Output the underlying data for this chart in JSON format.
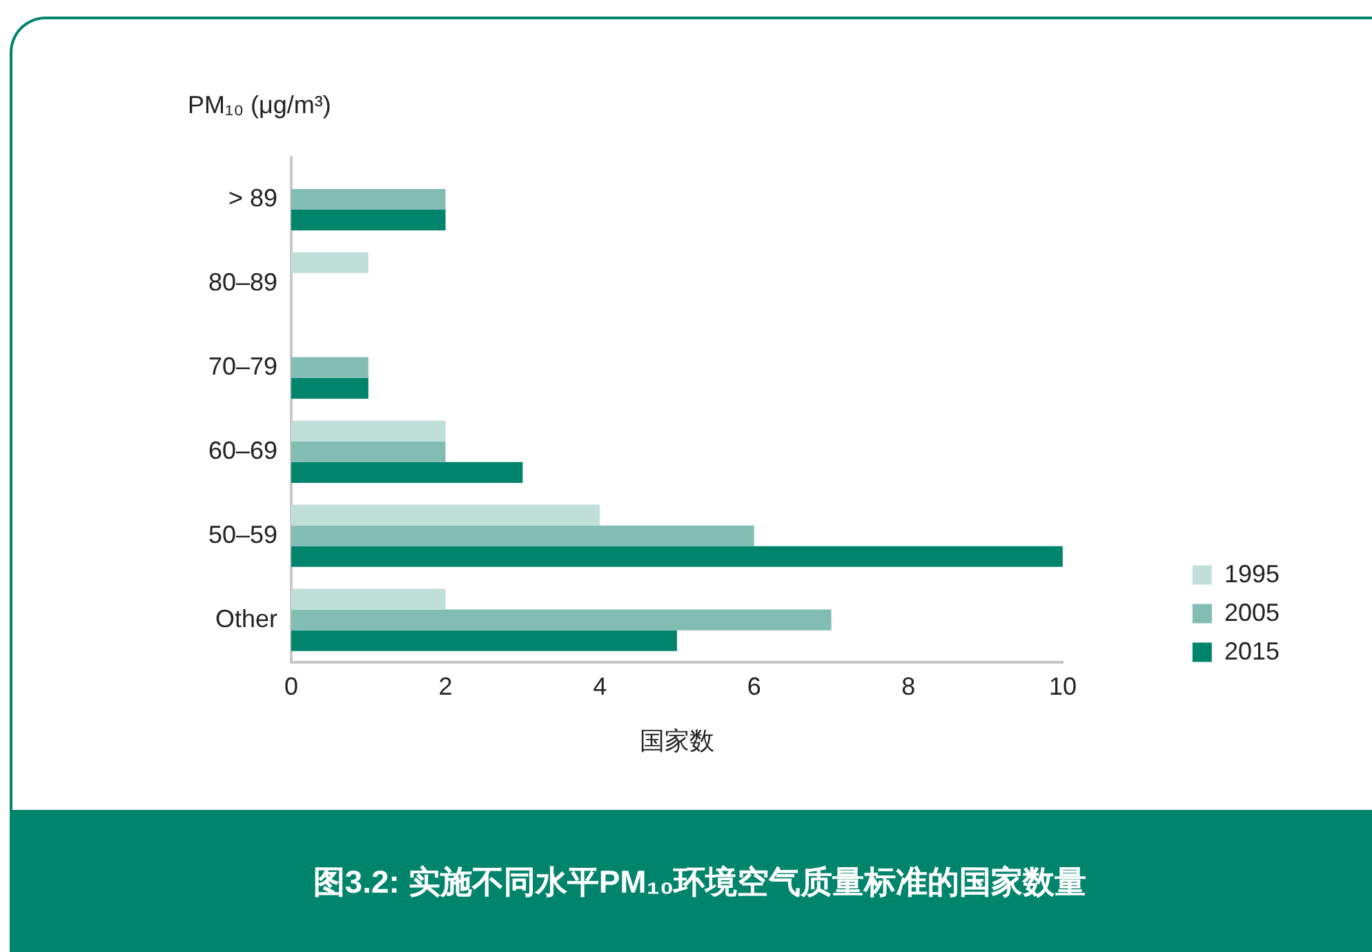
{
  "chart_data": {
    "type": "bar",
    "orientation": "horizontal",
    "title": "图3.2: 实施不同水平PM₁₀环境空气质量标准的国家数量",
    "ylabel": "PM₁₀ (μg/m³)",
    "xlabel": "国家数",
    "categories": [
      "> 89",
      "80–89",
      "70–79",
      "60–69",
      "50–59",
      "Other"
    ],
    "series": [
      {
        "name": "1995",
        "color": "#c0dfd9",
        "values": [
          0,
          1,
          0,
          2,
          4,
          2
        ]
      },
      {
        "name": "2005",
        "color": "#82bdb4",
        "values": [
          2,
          0,
          1,
          2,
          6,
          7
        ]
      },
      {
        "name": "2015",
        "color": "#00846c",
        "values": [
          2,
          0,
          1,
          3,
          10,
          5
        ]
      }
    ],
    "xlim": [
      0,
      10
    ],
    "xticks": [
      0,
      2,
      4,
      6,
      8,
      10
    ],
    "legend": "right"
  }
}
